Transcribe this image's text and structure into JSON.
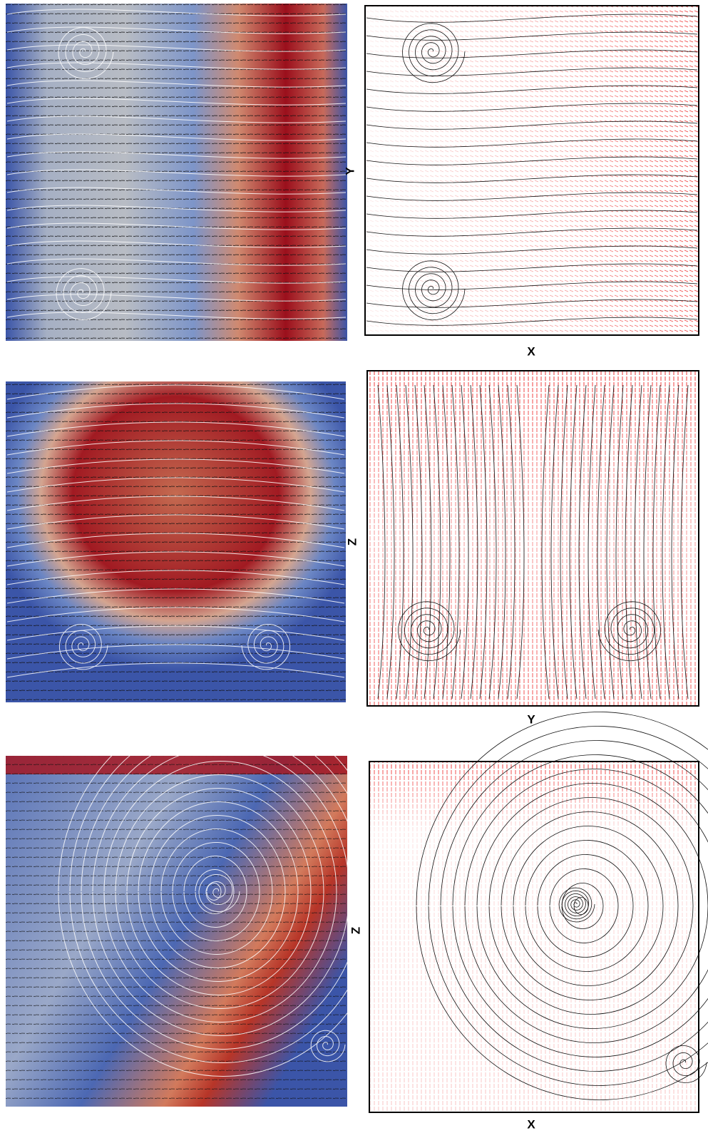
{
  "panels": [
    {
      "right": {
        "y_label": "Y",
        "x_label": "X"
      }
    },
    {
      "right": {
        "y_label": "Z",
        "x_label": "Y"
      }
    },
    {
      "right": {
        "y_label": "Z",
        "x_label": "X"
      }
    }
  ]
}
